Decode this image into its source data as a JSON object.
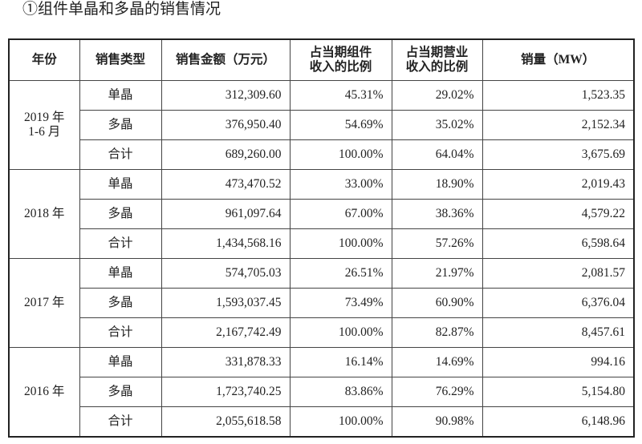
{
  "title": "①组件单晶和多晶的销售情况",
  "table": {
    "header": [
      [
        "年份"
      ],
      [
        "销售类型"
      ],
      [
        "销售金额（万元）"
      ],
      [
        "占当期组件",
        "收入的比例"
      ],
      [
        "占当期营业",
        "收入的比例"
      ],
      [
        "销量（MW）"
      ]
    ],
    "groups": [
      {
        "year": [
          "2019 年",
          "1-6 月"
        ],
        "rows": [
          [
            "单晶",
            "312,309.60",
            "45.31%",
            "29.02%",
            "1,523.35"
          ],
          [
            "多晶",
            "376,950.40",
            "54.69%",
            "35.02%",
            "2,152.34"
          ],
          [
            "合计",
            "689,260.00",
            "100.00%",
            "64.04%",
            "3,675.69"
          ]
        ]
      },
      {
        "year": [
          "2018 年"
        ],
        "rows": [
          [
            "单晶",
            "473,470.52",
            "33.00%",
            "18.90%",
            "2,019.43"
          ],
          [
            "多晶",
            "961,097.64",
            "67.00%",
            "38.36%",
            "4,579.22"
          ],
          [
            "合计",
            "1,434,568.16",
            "100.00%",
            "57.26%",
            "6,598.64"
          ]
        ]
      },
      {
        "year": [
          "2017 年"
        ],
        "rows": [
          [
            "单晶",
            "574,705.03",
            "26.51%",
            "21.97%",
            "2,081.57"
          ],
          [
            "多晶",
            "1,593,037.45",
            "73.49%",
            "60.90%",
            "6,376.04"
          ],
          [
            "合计",
            "2,167,742.49",
            "100.00%",
            "82.87%",
            "8,457.61"
          ]
        ]
      },
      {
        "year": [
          "2016 年"
        ],
        "rows": [
          [
            "单晶",
            "331,878.33",
            "16.14%",
            "14.69%",
            "994.16"
          ],
          [
            "多晶",
            "1,723,740.25",
            "83.86%",
            "76.29%",
            "5,154.80"
          ],
          [
            "合计",
            "2,055,618.58",
            "100.00%",
            "90.98%",
            "6,148.96"
          ]
        ]
      }
    ]
  }
}
